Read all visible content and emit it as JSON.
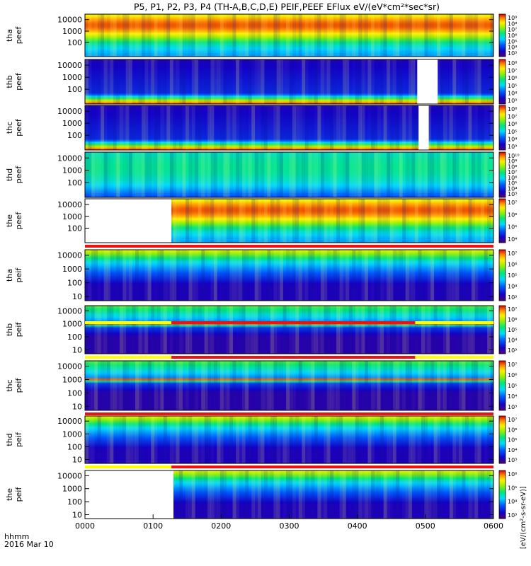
{
  "title": "P5, P1, P2, P3, P4 (TH-A,B,C,D,E) PEIF,PEEF EFlux eV/(eV*cm²*sec*sr)",
  "time_axis": {
    "label_line1": "hhmm",
    "label_line2": "2016 Mar 10",
    "ticks": [
      "0000",
      "0100",
      "0200",
      "0300",
      "0400",
      "0500",
      "0600"
    ],
    "range_hours": [
      0,
      6
    ]
  },
  "colorbar_units": "[eV/(cm²-s-sr-eV)]",
  "chart_data": {
    "type": "heatmap",
    "x_unit": "hours since 2016-03-10 00:00 UT",
    "xlim": [
      0,
      6
    ],
    "colormap": "rainbow (purple-blue-cyan-green-yellow-red)",
    "panels": [
      {
        "line1": "tha",
        "line2": "peef",
        "species": "electron",
        "yticks": [
          "10000",
          "1000",
          "100"
        ],
        "ylim_eV": [
          6,
          30000
        ],
        "ylog": true,
        "cbar_ticks": [
          "10⁹",
          "10⁸",
          "10⁷",
          "10⁶",
          "10⁵",
          "10⁴",
          "10³"
        ],
        "cbar_log": [
          3,
          9
        ],
        "profile": "electron_hot",
        "data_gaps_hours": []
      },
      {
        "line1": "thb",
        "line2": "peef",
        "species": "electron",
        "yticks": [
          "10000",
          "1000",
          "100"
        ],
        "ylim_eV": [
          6,
          30000
        ],
        "ylog": true,
        "cbar_ticks": [
          "10⁸",
          "10⁷",
          "10⁶",
          "10⁵",
          "10⁴",
          "10³"
        ],
        "cbar_log": [
          3,
          8
        ],
        "profile": "electron_cold",
        "data_gaps_hours": [
          [
            4.88,
            5.18
          ]
        ]
      },
      {
        "line1": "thc",
        "line2": "peef",
        "species": "electron",
        "yticks": [
          "10000",
          "1000",
          "100"
        ],
        "ylim_eV": [
          6,
          30000
        ],
        "ylog": true,
        "cbar_ticks": [
          "10⁸",
          "10⁷",
          "10⁶",
          "10⁵",
          "10⁴",
          "10³"
        ],
        "cbar_log": [
          3,
          8
        ],
        "profile": "electron_cold",
        "data_gaps_hours": [
          [
            4.9,
            5.05
          ]
        ]
      },
      {
        "line1": "thd",
        "line2": "peef",
        "species": "electron",
        "yticks": [
          "10000",
          "1000",
          "100"
        ],
        "ylim_eV": [
          6,
          30000
        ],
        "ylog": true,
        "cbar_ticks": [
          "10¹⁰",
          "10⁹",
          "10⁸",
          "10⁷",
          "10⁶",
          "10⁵",
          "10⁴",
          "10³"
        ],
        "cbar_log": [
          3,
          10
        ],
        "profile": "electron_mid",
        "data_gaps_hours": []
      },
      {
        "line1": "the",
        "line2": "peef",
        "species": "electron",
        "yticks": [
          "10000",
          "1000",
          "100"
        ],
        "ylim_eV": [
          6,
          30000
        ],
        "ylog": true,
        "cbar_ticks": [
          "10⁷",
          "10⁶",
          "10⁵",
          "10⁴"
        ],
        "cbar_log": [
          4,
          8
        ],
        "profile": "electron_hot",
        "data_gaps_hours": [
          [
            0,
            1.27
          ]
        ]
      },
      {
        "line1": "tha",
        "line2": "peif",
        "species": "ion",
        "yticks": [
          "10000",
          "1000",
          "100",
          "10"
        ],
        "ylim_eV": [
          5,
          25000
        ],
        "ylog": true,
        "cbar_ticks": [
          "10⁷",
          "10⁶",
          "10⁵",
          "10⁴",
          "10³"
        ],
        "cbar_log": [
          3,
          7
        ],
        "profile": "ion",
        "data_gaps_hours": []
      },
      {
        "line1": "thb",
        "line2": "peif",
        "species": "ion",
        "yticks": [
          "10000",
          "1000",
          "100",
          "10"
        ],
        "ylim_eV": [
          5,
          25000
        ],
        "ylog": true,
        "cbar_ticks": [
          "10⁷",
          "10⁶",
          "10⁵",
          "10⁴",
          "10³"
        ],
        "cbar_log": [
          3,
          7
        ],
        "profile": "ion_cold",
        "data_gaps_hours": []
      },
      {
        "line1": "thc",
        "line2": "peif",
        "species": "ion",
        "yticks": [
          "10000",
          "1000",
          "100",
          "10"
        ],
        "ylim_eV": [
          5,
          25000
        ],
        "ylog": true,
        "cbar_ticks": [
          "10⁷",
          "10⁶",
          "10⁵",
          "10⁴",
          "10³"
        ],
        "cbar_log": [
          3,
          7
        ],
        "profile": "ion_cold",
        "data_gaps_hours": []
      },
      {
        "line1": "thd",
        "line2": "peif",
        "species": "ion",
        "yticks": [
          "10000",
          "1000",
          "100",
          "10"
        ],
        "ylim_eV": [
          5,
          25000
        ],
        "ylog": true,
        "cbar_ticks": [
          "10⁷",
          "10⁶",
          "10⁵",
          "10⁴",
          "10³"
        ],
        "cbar_log": [
          3,
          7
        ],
        "profile": "ion",
        "data_gaps_hours": []
      },
      {
        "line1": "the",
        "line2": "peif",
        "species": "ion",
        "yticks": [
          "10000",
          "1000",
          "100",
          "10"
        ],
        "ylim_eV": [
          5,
          25000
        ],
        "ylog": true,
        "cbar_ticks": [
          "10⁶",
          "10⁵",
          "10⁴",
          "10³"
        ],
        "cbar_log": [
          3,
          6
        ],
        "profile": "ion",
        "data_gaps_hours": [
          [
            0,
            1.3
          ]
        ]
      }
    ],
    "status_bars": [
      {
        "after_panel": 5,
        "segments": [
          {
            "from": 0,
            "to": 6,
            "color": "red"
          }
        ]
      },
      {
        "after_panel": 6,
        "segments": [
          {
            "from": 0,
            "to": 1.27,
            "color": "yellow"
          },
          {
            "from": 1.27,
            "to": 4.85,
            "color": "red"
          },
          {
            "from": 4.85,
            "to": 6,
            "color": "yellow"
          }
        ]
      },
      {
        "after_panel": 7,
        "segments": [
          {
            "from": 0,
            "to": 1.27,
            "color": "yellow"
          },
          {
            "from": 1.27,
            "to": 4.85,
            "color": "red"
          },
          {
            "from": 4.85,
            "to": 6,
            "color": "yellow"
          }
        ]
      },
      {
        "after_panel": 8,
        "segments": [
          {
            "from": 0,
            "to": 6,
            "color": "red"
          }
        ]
      },
      {
        "after_panel": 9,
        "segments": [
          {
            "from": 0,
            "to": 1.27,
            "color": "yellow"
          },
          {
            "from": 1.27,
            "to": 6,
            "color": "red"
          }
        ]
      }
    ]
  }
}
